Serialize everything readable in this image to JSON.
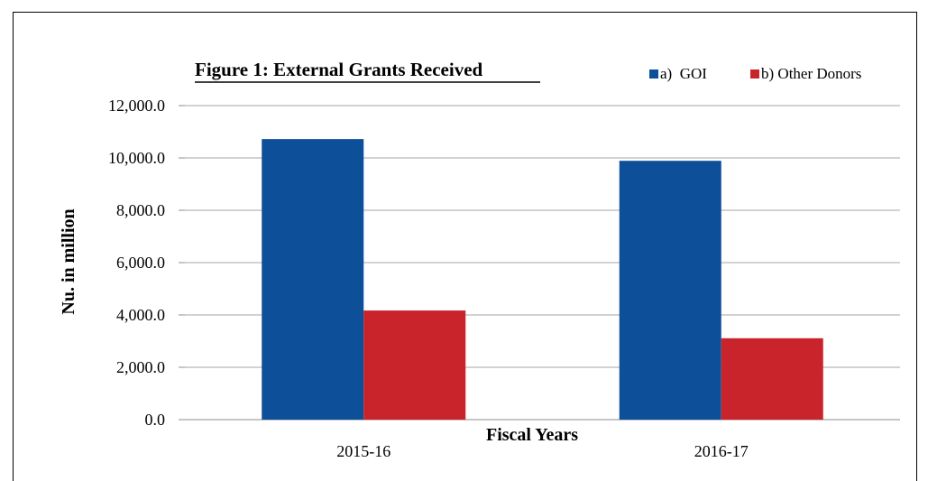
{
  "chart_data": {
    "type": "bar",
    "title": "Figure 1: External Grants Received",
    "xlabel": "Fiscal Years",
    "ylabel": "Nu. in million",
    "categories": [
      "2015-16",
      "2016-17"
    ],
    "series": [
      {
        "name": "a)  GOI",
        "values": [
          10720,
          9890
        ],
        "color": "#0e4f9a"
      },
      {
        "name": "b) Other Donors",
        "values": [
          4170,
          3110
        ],
        "color": "#c9242b"
      }
    ],
    "ylim": [
      0,
      12000
    ],
    "yticks": [
      "0.0",
      "2,000.0",
      "4,000.0",
      "6,000.0",
      "8,000.0",
      "10,000.0",
      "12,000.0"
    ],
    "grid": true,
    "legend_position": "top-right"
  }
}
